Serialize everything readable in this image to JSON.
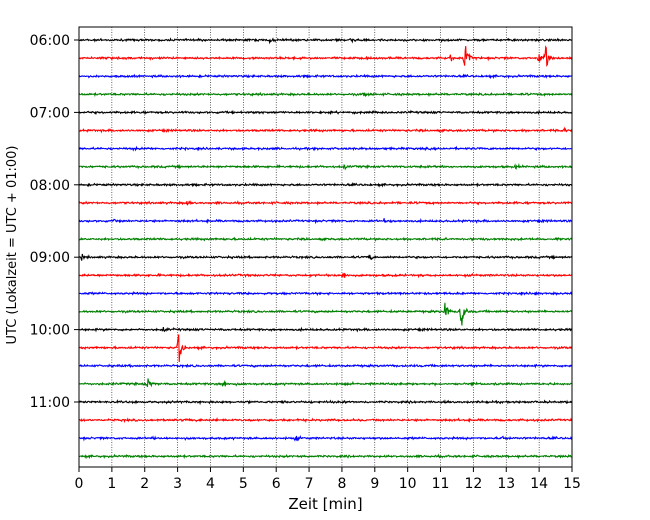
{
  "chart_data": {
    "type": "line",
    "title": "",
    "xlabel": "Zeit  [min]",
    "ylabel": "UTC (Lokalzeit = UTC + 01:00)",
    "xlim": [
      0,
      15
    ],
    "x_ticks": [
      "0",
      "1",
      "2",
      "3",
      "4",
      "5",
      "6",
      "7",
      "8",
      "9",
      "10",
      "11",
      "12",
      "13",
      "14",
      "15"
    ],
    "y_ticks": [
      {
        "label": "06:00",
        "trace_index": 0
      },
      {
        "label": "07:00",
        "trace_index": 4
      },
      {
        "label": "08:00",
        "trace_index": 8
      },
      {
        "label": "09:00",
        "trace_index": 12
      },
      {
        "label": "10:00",
        "trace_index": 16
      },
      {
        "label": "11:00",
        "trace_index": 20
      }
    ],
    "grid": {
      "x": true,
      "y": false,
      "style": "dotted"
    },
    "trace_interval_minutes": 15,
    "start_time": "06:00",
    "color_cycle": [
      "#000000",
      "#ff0000",
      "#0000ff",
      "#008000"
    ],
    "traces": [
      {
        "start": "06:00",
        "color": "#000000",
        "events": [
          {
            "t": 5.8,
            "amp": 0.25
          },
          {
            "t": 8.3,
            "amp": 0.18
          }
        ]
      },
      {
        "start": "06:15",
        "color": "#ff0000",
        "events": [
          {
            "t": 11.3,
            "amp": 0.3
          },
          {
            "t": 11.75,
            "amp": 1.6
          },
          {
            "t": 14.0,
            "amp": 0.35
          },
          {
            "t": 14.2,
            "amp": 1.2
          }
        ]
      },
      {
        "start": "06:30",
        "color": "#0000ff",
        "events": []
      },
      {
        "start": "06:45",
        "color": "#008000",
        "events": [
          {
            "t": 8.7,
            "amp": 0.15
          }
        ]
      },
      {
        "start": "07:00",
        "color": "#000000",
        "events": []
      },
      {
        "start": "07:15",
        "color": "#ff0000",
        "events": [
          {
            "t": 14.8,
            "amp": 0.2
          }
        ]
      },
      {
        "start": "07:30",
        "color": "#0000ff",
        "events": [
          {
            "t": 1.7,
            "amp": 0.15
          }
        ]
      },
      {
        "start": "07:45",
        "color": "#008000",
        "events": [
          {
            "t": 8.1,
            "amp": 0.22
          },
          {
            "t": 13.3,
            "amp": 0.18
          }
        ]
      },
      {
        "start": "08:00",
        "color": "#000000",
        "events": []
      },
      {
        "start": "08:15",
        "color": "#ff0000",
        "events": [
          {
            "t": 3.3,
            "amp": 0.22
          }
        ]
      },
      {
        "start": "08:30",
        "color": "#0000ff",
        "events": [
          {
            "t": 1.1,
            "amp": 0.15
          },
          {
            "t": 9.3,
            "amp": 0.2
          }
        ]
      },
      {
        "start": "08:45",
        "color": "#008000",
        "events": []
      },
      {
        "start": "09:00",
        "color": "#000000",
        "events": [
          {
            "t": 0.1,
            "amp": 0.28
          },
          {
            "t": 8.85,
            "amp": 0.3
          }
        ]
      },
      {
        "start": "09:15",
        "color": "#ff0000",
        "events": [
          {
            "t": 8.05,
            "amp": 0.3
          }
        ]
      },
      {
        "start": "09:30",
        "color": "#0000ff",
        "events": [
          {
            "t": 13.9,
            "amp": 0.15
          }
        ]
      },
      {
        "start": "09:45",
        "color": "#008000",
        "events": [
          {
            "t": 11.15,
            "amp": 0.95
          },
          {
            "t": 11.65,
            "amp": 1.5
          }
        ]
      },
      {
        "start": "10:00",
        "color": "#000000",
        "events": [
          {
            "t": 2.6,
            "amp": 0.3
          }
        ]
      },
      {
        "start": "10:15",
        "color": "#ff0000",
        "events": [
          {
            "t": 3.05,
            "amp": 1.45
          }
        ]
      },
      {
        "start": "10:30",
        "color": "#0000ff",
        "events": []
      },
      {
        "start": "10:45",
        "color": "#008000",
        "events": [
          {
            "t": 2.1,
            "amp": 0.45
          },
          {
            "t": 4.4,
            "amp": 0.35
          }
        ]
      },
      {
        "start": "11:00",
        "color": "#000000",
        "events": [
          {
            "t": 11.1,
            "amp": 0.15
          }
        ]
      },
      {
        "start": "11:15",
        "color": "#ff0000",
        "events": []
      },
      {
        "start": "11:30",
        "color": "#0000ff",
        "events": [
          {
            "t": 6.6,
            "amp": 0.3
          },
          {
            "t": 12.9,
            "amp": 0.2
          }
        ]
      },
      {
        "start": "11:45",
        "color": "#008000",
        "events": [
          {
            "t": 6.8,
            "amp": 0.18
          }
        ]
      }
    ]
  }
}
